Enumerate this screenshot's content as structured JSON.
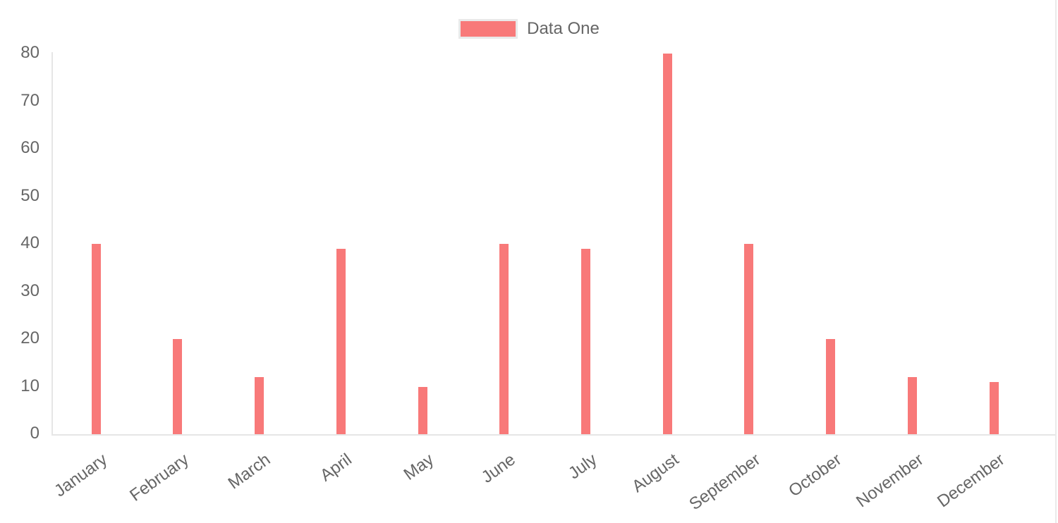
{
  "chart_data": {
    "type": "bar",
    "title": "",
    "xlabel": "",
    "ylabel": "",
    "categories": [
      "January",
      "February",
      "March",
      "April",
      "May",
      "June",
      "July",
      "August",
      "September",
      "October",
      "November",
      "December"
    ],
    "series": [
      {
        "name": "Data One",
        "color": "#f87979",
        "values": [
          40,
          20,
          12,
          39,
          10,
          40,
          39,
          80,
          40,
          20,
          12,
          11
        ]
      }
    ],
    "ylim": [
      0,
      80
    ],
    "yticks": [
      0,
      10,
      20,
      30,
      40,
      50,
      60,
      70,
      80
    ],
    "grid": false,
    "legend_position": "top-center",
    "x_label_rotation_deg": -36
  },
  "legend": {
    "label": "Data One",
    "swatch_color": "#f87979",
    "swatch_border_color": "#e9e9e9"
  },
  "colors": {
    "bar": "#f87979",
    "axis_line": "#e6e6e6",
    "tick_text": "#666666",
    "background": "#ffffff"
  }
}
